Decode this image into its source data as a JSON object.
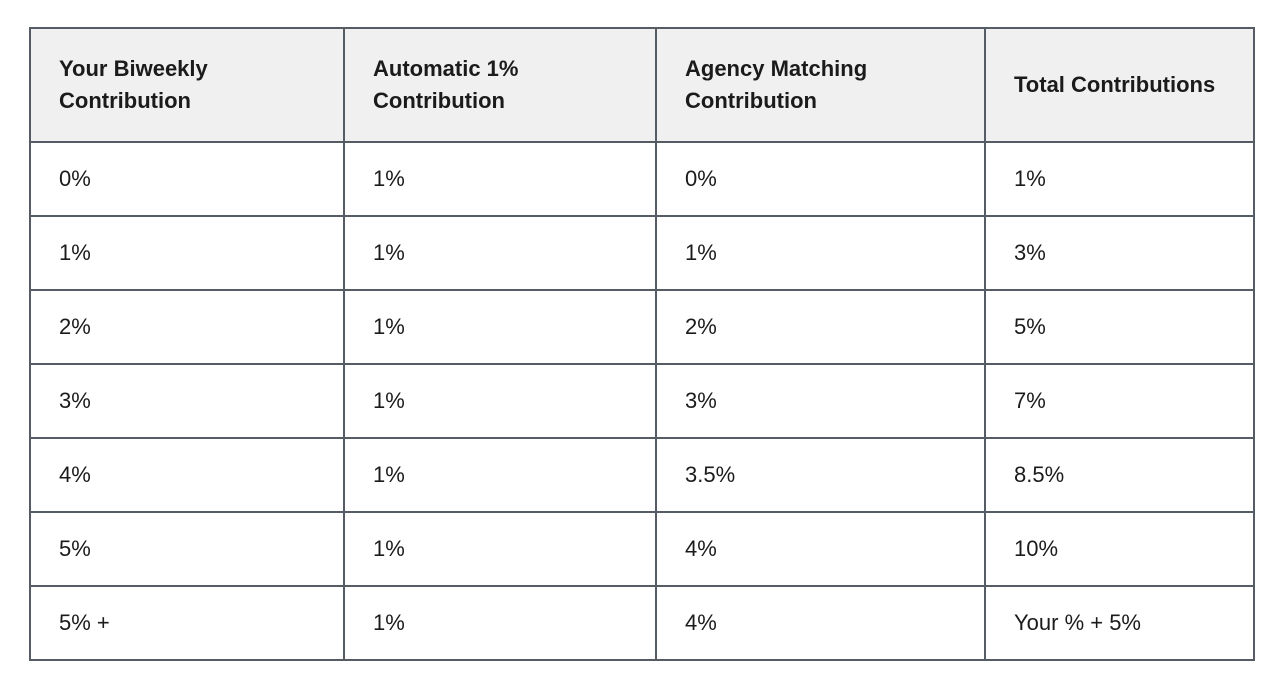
{
  "theme": {
    "border_color": "#565c65",
    "header_background": "#f0f0f0",
    "row_background": "#ffffff",
    "text_color": "#1b1b1b",
    "page_background": "#ffffff"
  },
  "chart_data": {
    "type": "table",
    "title": "",
    "columns": [
      "Your Biweekly Contribution",
      "Automatic 1% Contribution",
      "Agency Matching Contribution",
      "Total Contributions"
    ],
    "rows": [
      [
        "0%",
        "1%",
        "0%",
        "1%"
      ],
      [
        "1%",
        "1%",
        "1%",
        "3%"
      ],
      [
        "2%",
        "1%",
        "2%",
        "5%"
      ],
      [
        "3%",
        "1%",
        "3%",
        "7%"
      ],
      [
        "4%",
        "1%",
        "3.5%",
        "8.5%"
      ],
      [
        "5%",
        "1%",
        "4%",
        "10%"
      ],
      [
        "5% +",
        "1%",
        "4%",
        "Your % + 5%"
      ]
    ]
  }
}
